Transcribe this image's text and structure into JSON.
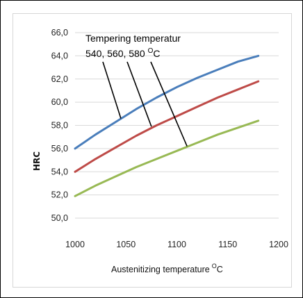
{
  "chart_data": {
    "type": "line",
    "title": "",
    "xlabel": "Austenitizing temperature",
    "xlabel_unit_prefix": "O",
    "xlabel_unit": "C",
    "ylabel": "HRC",
    "xlim": [
      1000,
      1200
    ],
    "ylim": [
      50,
      66
    ],
    "x_ticks": [
      1000,
      1050,
      1100,
      1150,
      1200
    ],
    "y_ticks": [
      50,
      52,
      54,
      56,
      58,
      60,
      62,
      64,
      66
    ],
    "y_tick_labels": [
      "50,0",
      "52,0",
      "54,0",
      "56,0",
      "58,0",
      "60,0",
      "62,0",
      "64,0",
      "66,0"
    ],
    "x_tick_labels": [
      "1000",
      "1050",
      "1100",
      "1150",
      "1200"
    ],
    "grid": "horizontal",
    "series": [
      {
        "color": "#4a7ebb",
        "x": [
          1000,
          1020,
          1040,
          1060,
          1080,
          1100,
          1120,
          1140,
          1160,
          1180
        ],
        "values": [
          56.0,
          57.2,
          58.3,
          59.4,
          60.4,
          61.3,
          62.1,
          62.8,
          63.5,
          64.0
        ]
      },
      {
        "color": "#be4b48",
        "x": [
          1000,
          1020,
          1040,
          1060,
          1080,
          1100,
          1120,
          1140,
          1160,
          1180
        ],
        "values": [
          54.0,
          55.1,
          56.1,
          57.1,
          58.0,
          58.8,
          59.6,
          60.4,
          61.1,
          61.8
        ]
      },
      {
        "color": "#98b954",
        "x": [
          1000,
          1020,
          1040,
          1060,
          1080,
          1100,
          1120,
          1140,
          1160,
          1180
        ],
        "values": [
          51.9,
          52.8,
          53.6,
          54.4,
          55.1,
          55.8,
          56.5,
          57.2,
          57.8,
          58.4
        ]
      }
    ],
    "annotation": {
      "line1": "Tempering temperatur",
      "line2": "540, 560, 580",
      "unit_prefix": "O",
      "unit": "C",
      "pointers": [
        {
          "target_x": 1045,
          "target_y": 58.6
        },
        {
          "target_x": 1075,
          "target_y": 57.9
        },
        {
          "target_x": 1110,
          "target_y": 56.2
        }
      ]
    }
  }
}
